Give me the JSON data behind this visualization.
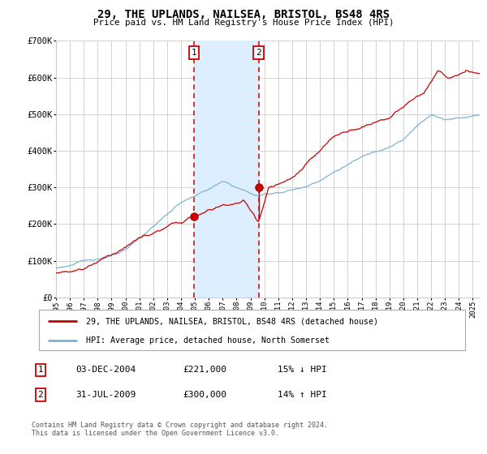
{
  "title": "29, THE UPLANDS, NAILSEA, BRISTOL, BS48 4RS",
  "subtitle": "Price paid vs. HM Land Registry's House Price Index (HPI)",
  "ylim": [
    0,
    700000
  ],
  "yticks": [
    0,
    100000,
    200000,
    300000,
    400000,
    500000,
    600000,
    700000
  ],
  "ytick_labels": [
    "£0",
    "£100K",
    "£200K",
    "£300K",
    "£400K",
    "£500K",
    "£600K",
    "£700K"
  ],
  "xlim_start": 1995.0,
  "xlim_end": 2025.5,
  "xtick_years": [
    1995,
    1996,
    1997,
    1998,
    1999,
    2000,
    2001,
    2002,
    2003,
    2004,
    2005,
    2006,
    2007,
    2008,
    2009,
    2010,
    2011,
    2012,
    2013,
    2014,
    2015,
    2016,
    2017,
    2018,
    2019,
    2020,
    2021,
    2022,
    2023,
    2024,
    2025
  ],
  "sale1_date": 2004.92,
  "sale1_price": 221000,
  "sale2_date": 2009.58,
  "sale2_price": 300000,
  "shade_x1": 2004.92,
  "shade_x2": 2009.58,
  "red_line_color": "#cc0000",
  "blue_line_color": "#7fb3d3",
  "shade_color": "#ddeeff",
  "grid_color": "#cccccc",
  "background_color": "#ffffff",
  "legend_label_red": "29, THE UPLANDS, NAILSEA, BRISTOL, BS48 4RS (detached house)",
  "legend_label_blue": "HPI: Average price, detached house, North Somerset",
  "table_row1": [
    "1",
    "03-DEC-2004",
    "£221,000",
    "15% ↓ HPI"
  ],
  "table_row2": [
    "2",
    "31-JUL-2009",
    "£300,000",
    "14% ↑ HPI"
  ],
  "footnote": "Contains HM Land Registry data © Crown copyright and database right 2024.\nThis data is licensed under the Open Government Licence v3.0."
}
